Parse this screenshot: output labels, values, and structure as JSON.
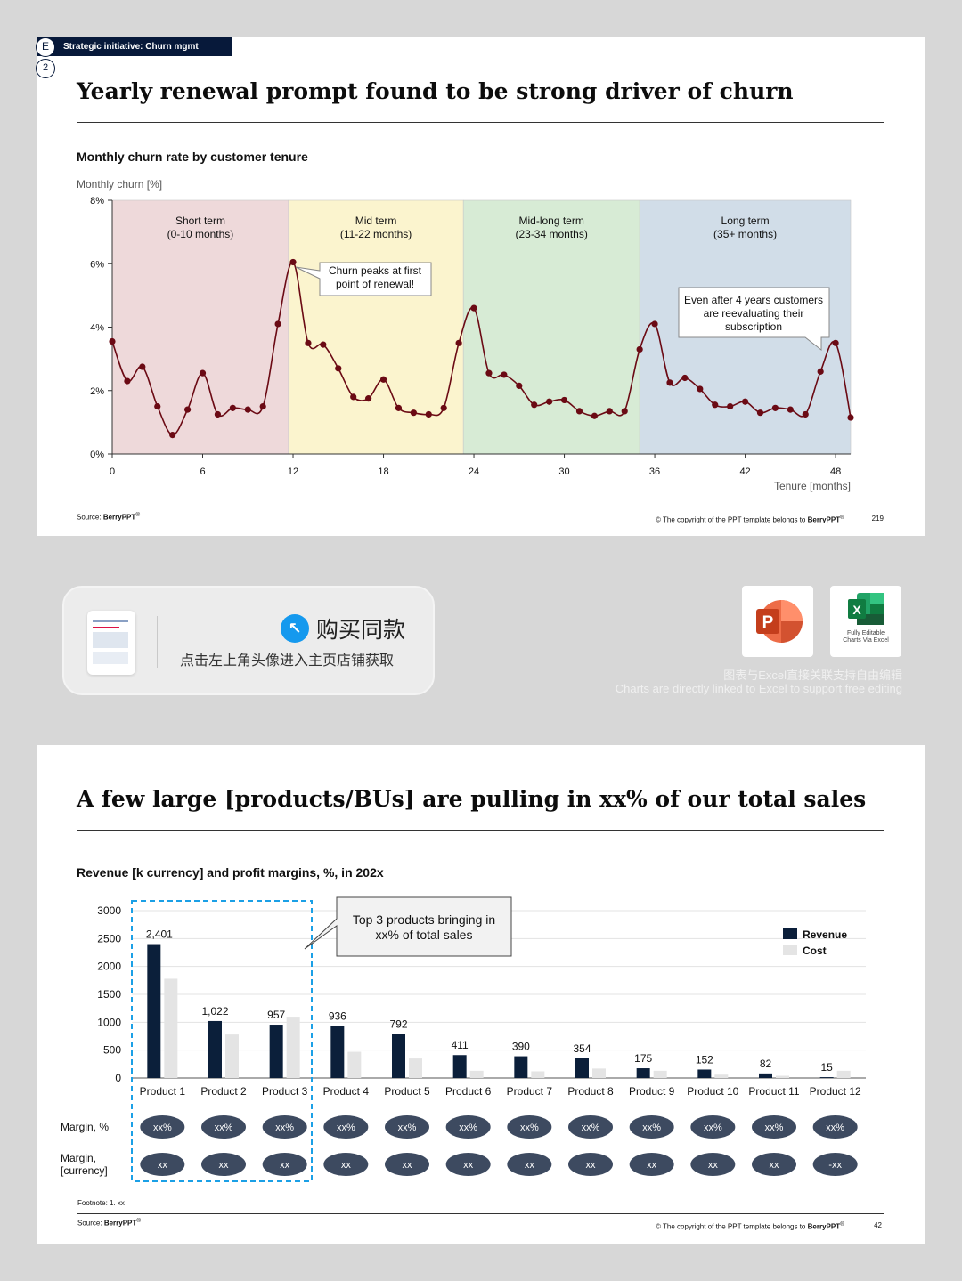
{
  "slide1": {
    "tag_letter": "E",
    "tag_label": "Strategic initiative: Churn mgmt",
    "step_number": "2",
    "title": "Yearly renewal prompt found to be strong driver of churn",
    "subtitle": "Monthly churn rate by customer tenure",
    "source_label": "Source:",
    "source_name": "BerryPPT",
    "copyright_prefix": "© The copyright of the PPT template belongs to",
    "copyright_name": "BerryPPT",
    "page": "219",
    "chart_data": {
      "type": "line",
      "ylabel": "Monthly churn [%]",
      "xlabel": "Tenure [months]",
      "ylim": [
        0,
        8
      ],
      "xlim": [
        0,
        49
      ],
      "y_ticks": [
        "0%",
        "2%",
        "4%",
        "6%",
        "8%"
      ],
      "y_tick_values": [
        0,
        2,
        4,
        6,
        8
      ],
      "x_ticks": [
        "0",
        "6",
        "12",
        "18",
        "24",
        "30",
        "36",
        "42",
        "48"
      ],
      "x_tick_values": [
        0,
        6,
        12,
        18,
        24,
        30,
        36,
        42,
        48
      ],
      "grid": false,
      "series_color": "#6b0a14",
      "bands": [
        {
          "label": "Short term",
          "range_label": "(0-10 months)",
          "from": 0,
          "to": 11.7,
          "color": "#eed9da"
        },
        {
          "label": "Mid term",
          "range_label": "(11-22 months)",
          "from": 11.7,
          "to": 23.3,
          "color": "#fbf4ce"
        },
        {
          "label": "Mid-long term",
          "range_label": "(23-34 months)",
          "from": 23.3,
          "to": 35,
          "color": "#d7ebd5"
        },
        {
          "label": "Long term",
          "range_label": "(35+ months)",
          "from": 35,
          "to": 49,
          "color": "#d1dde8"
        }
      ],
      "x": [
        0,
        1,
        2,
        3,
        4,
        5,
        6,
        7,
        8,
        9,
        10,
        11,
        12,
        13,
        14,
        15,
        16,
        17,
        18,
        19,
        20,
        21,
        22,
        23,
        24,
        25,
        26,
        27,
        28,
        29,
        30,
        31,
        32,
        33,
        34,
        35,
        36,
        37,
        38,
        39,
        40,
        41,
        42,
        43,
        44,
        45,
        46,
        47,
        48,
        49
      ],
      "y": [
        3.55,
        2.3,
        2.75,
        1.5,
        0.6,
        1.4,
        2.55,
        1.25,
        1.45,
        1.4,
        1.5,
        4.1,
        6.05,
        3.5,
        3.45,
        2.7,
        1.8,
        1.75,
        2.35,
        1.45,
        1.3,
        1.25,
        1.45,
        3.5,
        4.6,
        2.55,
        2.5,
        2.15,
        1.55,
        1.65,
        1.7,
        1.35,
        1.2,
        1.35,
        1.35,
        3.3,
        4.1,
        2.25,
        2.4,
        2.05,
        1.55,
        1.5,
        1.65,
        1.3,
        1.45,
        1.4,
        1.25,
        2.6,
        3.5,
        1.15
      ],
      "annotations": [
        {
          "text_lines": [
            "Churn peaks at first",
            "point of renewal!"
          ]
        },
        {
          "text_lines": [
            "Even after 4 years customers",
            "are reevaluating their",
            "subscription"
          ]
        }
      ]
    }
  },
  "banner": {
    "buy_title": "购买同款",
    "buy_subtitle": "点击左上角头像进入主页店铺获取",
    "excel_caption_line1": "Fully Editable",
    "excel_caption_line2": "Charts Via Excel",
    "excel_letter": "X",
    "ppt_letter": "P",
    "linked_cn": "图表与Excel直接关联支持自由编辑",
    "linked_en": "Charts are directly linked to Excel to support free editing",
    "colors": {
      "ppt": "#d2452b",
      "excel": "#1d7745",
      "buy_icon": "#1599ee"
    }
  },
  "slide2": {
    "title": "A few large [products/BUs] are pulling in xx% of our total sales",
    "subtitle": "Revenue [k currency] and profit margins, %, in 202x",
    "footnote": "Footnote: 1. xx",
    "source_label": "Source:",
    "source_name": "BerryPPT",
    "copyright_prefix": "© The copyright of the PPT template belongs to",
    "copyright_name": "BerryPPT",
    "page": "42",
    "callout_lines": [
      "Top 3 products bringing in",
      "xx% of total sales"
    ],
    "margin_pct_label": "Margin, %",
    "margin_cur_label_lines": [
      "Margin,",
      "[currency]"
    ],
    "margin_pct_values": [
      "xx%",
      "xx%",
      "xx%",
      "xx%",
      "xx%",
      "xx%",
      "xx%",
      "xx%",
      "xx%",
      "xx%",
      "xx%",
      "xx%"
    ],
    "margin_cur_values": [
      "xx",
      "xx",
      "xx",
      "xx",
      "xx",
      "xx",
      "xx",
      "xx",
      "xx",
      "xx",
      "xx",
      "-xx"
    ],
    "chart_data": {
      "type": "bar",
      "categories": [
        "Product 1",
        "Product 2",
        "Product 3",
        "Product 4",
        "Product 5",
        "Product 6",
        "Product 7",
        "Product 8",
        "Product 9",
        "Product 10",
        "Product 11",
        "Product 12"
      ],
      "series": [
        {
          "name": "Revenue",
          "color": "#0b1f3a",
          "values": [
            2401,
            1022,
            957,
            936,
            792,
            411,
            390,
            354,
            175,
            152,
            82,
            15
          ],
          "labels": [
            "2,401",
            "1,022",
            "957",
            "936",
            "792",
            "411",
            "390",
            "354",
            "175",
            "152",
            "82",
            "15"
          ]
        },
        {
          "name": "Cost",
          "color": "#e4e4e4",
          "values": [
            1780,
            780,
            1100,
            470,
            350,
            130,
            120,
            170,
            130,
            60,
            40,
            130
          ]
        }
      ],
      "ylim": [
        0,
        3000
      ],
      "y_ticks": [
        "0",
        "500",
        "1000",
        "1500",
        "2000",
        "2500",
        "3000"
      ],
      "y_tick_values": [
        0,
        500,
        1000,
        1500,
        2000,
        2500,
        3000
      ],
      "grid": true,
      "legend_position": "top-right",
      "highlight_first_n": 3
    }
  }
}
